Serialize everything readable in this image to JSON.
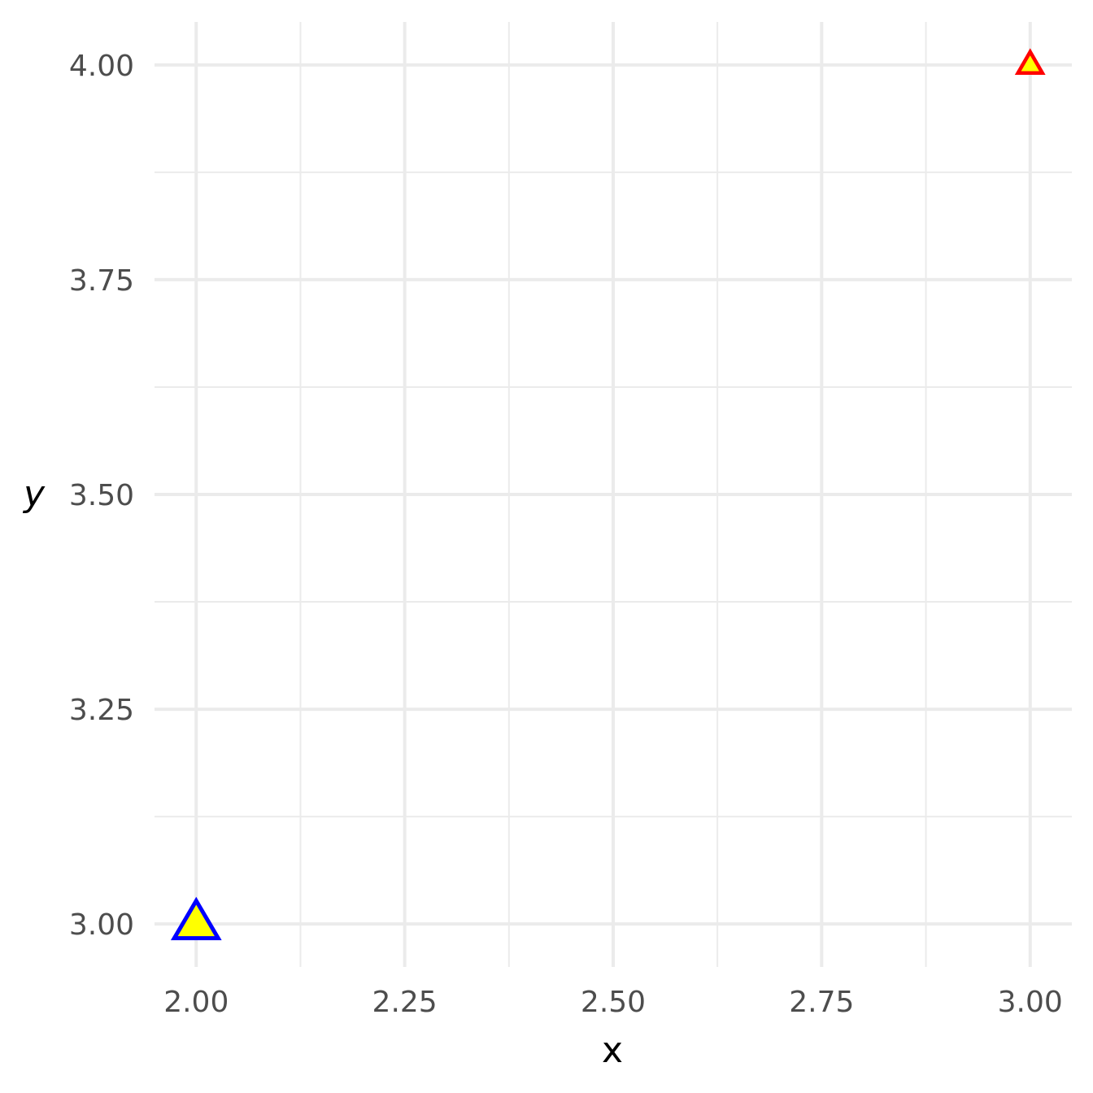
{
  "chart_data": {
    "type": "scatter",
    "title": "",
    "xlabel": "x",
    "ylabel": "y",
    "xlim": [
      1.95,
      3.05
    ],
    "ylim": [
      2.95,
      4.05
    ],
    "x_ticks": [
      2.0,
      2.25,
      2.5,
      2.75,
      3.0
    ],
    "x_tick_labels": [
      "2.00",
      "2.25",
      "2.50",
      "2.75",
      "3.00"
    ],
    "x_minor_ticks": [
      2.125,
      2.375,
      2.625,
      2.875
    ],
    "y_ticks": [
      3.0,
      3.25,
      3.5,
      3.75,
      4.0
    ],
    "y_tick_labels": [
      "3.00",
      "3.25",
      "3.50",
      "3.75",
      "4.00"
    ],
    "y_minor_ticks": [
      3.125,
      3.375,
      3.625,
      3.875
    ],
    "grid": true,
    "legend": "none",
    "grid_color": "#ebebeb",
    "background": "#ffffff",
    "points": [
      {
        "x": 2,
        "y": 3,
        "marker": "triangle",
        "fill": "#ffff00",
        "stroke": "#0000ff",
        "size": "large"
      },
      {
        "x": 3,
        "y": 4,
        "marker": "triangle",
        "fill": "#ffff00",
        "stroke": "#ff0000",
        "size": "small"
      }
    ]
  }
}
